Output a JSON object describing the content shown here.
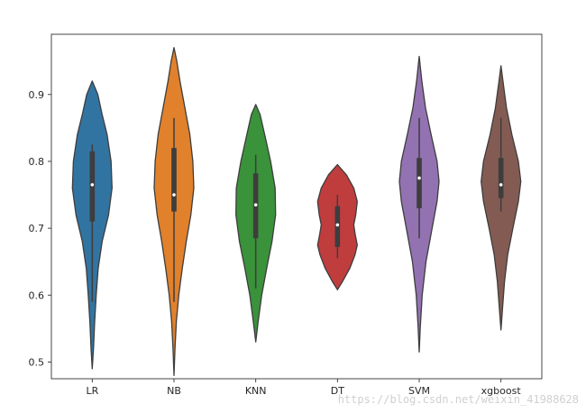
{
  "chart_data": {
    "type": "violin",
    "title": "",
    "xlabel": "",
    "ylabel": "",
    "ylim": [
      0.475,
      0.99
    ],
    "yticks": [
      0.5,
      0.6,
      0.7,
      0.8,
      0.9
    ],
    "categories": [
      "LR",
      "NB",
      "KNN",
      "DT",
      "SVM",
      "xgboost"
    ],
    "colors": [
      "#3274a1",
      "#e1812c",
      "#3a923a",
      "#c03d3e",
      "#9372b2",
      "#845b53"
    ],
    "series": [
      {
        "category": "LR",
        "min": 0.49,
        "max": 0.92,
        "q1": 0.71,
        "median": 0.765,
        "q3": 0.815,
        "whisker_low": 0.59,
        "whisker_high": 0.825,
        "density": [
          [
            0.49,
            0.0
          ],
          [
            0.52,
            0.06
          ],
          [
            0.56,
            0.12
          ],
          [
            0.6,
            0.2
          ],
          [
            0.64,
            0.3
          ],
          [
            0.68,
            0.5
          ],
          [
            0.72,
            0.82
          ],
          [
            0.76,
            1.0
          ],
          [
            0.8,
            0.95
          ],
          [
            0.84,
            0.75
          ],
          [
            0.87,
            0.5
          ],
          [
            0.9,
            0.28
          ],
          [
            0.92,
            0.0
          ]
        ]
      },
      {
        "category": "NB",
        "min": 0.48,
        "max": 0.97,
        "q1": 0.725,
        "median": 0.75,
        "q3": 0.82,
        "whisker_low": 0.59,
        "whisker_high": 0.865,
        "density": [
          [
            0.48,
            0.0
          ],
          [
            0.52,
            0.05
          ],
          [
            0.56,
            0.12
          ],
          [
            0.6,
            0.24
          ],
          [
            0.64,
            0.42
          ],
          [
            0.68,
            0.62
          ],
          [
            0.72,
            0.85
          ],
          [
            0.76,
            1.0
          ],
          [
            0.8,
            0.95
          ],
          [
            0.84,
            0.8
          ],
          [
            0.88,
            0.55
          ],
          [
            0.92,
            0.3
          ],
          [
            0.95,
            0.14
          ],
          [
            0.97,
            0.0
          ]
        ]
      },
      {
        "category": "KNN",
        "min": 0.53,
        "max": 0.885,
        "q1": 0.685,
        "median": 0.735,
        "q3": 0.782,
        "whisker_low": 0.61,
        "whisker_high": 0.81,
        "density": [
          [
            0.53,
            0.0
          ],
          [
            0.56,
            0.12
          ],
          [
            0.6,
            0.3
          ],
          [
            0.64,
            0.55
          ],
          [
            0.68,
            0.82
          ],
          [
            0.72,
            1.0
          ],
          [
            0.76,
            0.98
          ],
          [
            0.8,
            0.75
          ],
          [
            0.84,
            0.45
          ],
          [
            0.87,
            0.22
          ],
          [
            0.885,
            0.0
          ]
        ]
      },
      {
        "category": "DT",
        "min": 0.608,
        "max": 0.795,
        "q1": 0.672,
        "median": 0.705,
        "q3": 0.733,
        "whisker_low": 0.655,
        "whisker_high": 0.75,
        "density": [
          [
            0.608,
            0.0
          ],
          [
            0.62,
            0.25
          ],
          [
            0.64,
            0.62
          ],
          [
            0.66,
            0.88
          ],
          [
            0.675,
            1.0
          ],
          [
            0.69,
            0.9
          ],
          [
            0.705,
            0.82
          ],
          [
            0.72,
            0.92
          ],
          [
            0.74,
            1.0
          ],
          [
            0.76,
            0.82
          ],
          [
            0.78,
            0.45
          ],
          [
            0.795,
            0.0
          ]
        ]
      },
      {
        "category": "SVM",
        "min": 0.515,
        "max": 0.957,
        "q1": 0.73,
        "median": 0.775,
        "q3": 0.805,
        "whisker_low": 0.685,
        "whisker_high": 0.865,
        "density": [
          [
            0.515,
            0.0
          ],
          [
            0.55,
            0.05
          ],
          [
            0.6,
            0.15
          ],
          [
            0.65,
            0.34
          ],
          [
            0.7,
            0.65
          ],
          [
            0.74,
            0.9
          ],
          [
            0.77,
            1.0
          ],
          [
            0.8,
            0.9
          ],
          [
            0.84,
            0.6
          ],
          [
            0.88,
            0.32
          ],
          [
            0.92,
            0.13
          ],
          [
            0.957,
            0.0
          ]
        ]
      },
      {
        "category": "xgboost",
        "min": 0.548,
        "max": 0.943,
        "q1": 0.745,
        "median": 0.765,
        "q3": 0.805,
        "whisker_low": 0.725,
        "whisker_high": 0.865,
        "density": [
          [
            0.548,
            0.0
          ],
          [
            0.58,
            0.08
          ],
          [
            0.62,
            0.18
          ],
          [
            0.66,
            0.34
          ],
          [
            0.7,
            0.6
          ],
          [
            0.74,
            0.88
          ],
          [
            0.77,
            1.0
          ],
          [
            0.8,
            0.88
          ],
          [
            0.84,
            0.55
          ],
          [
            0.88,
            0.28
          ],
          [
            0.92,
            0.1
          ],
          [
            0.943,
            0.0
          ]
        ]
      }
    ]
  },
  "watermark": "https://blog.csdn.net/weixin_41988628"
}
